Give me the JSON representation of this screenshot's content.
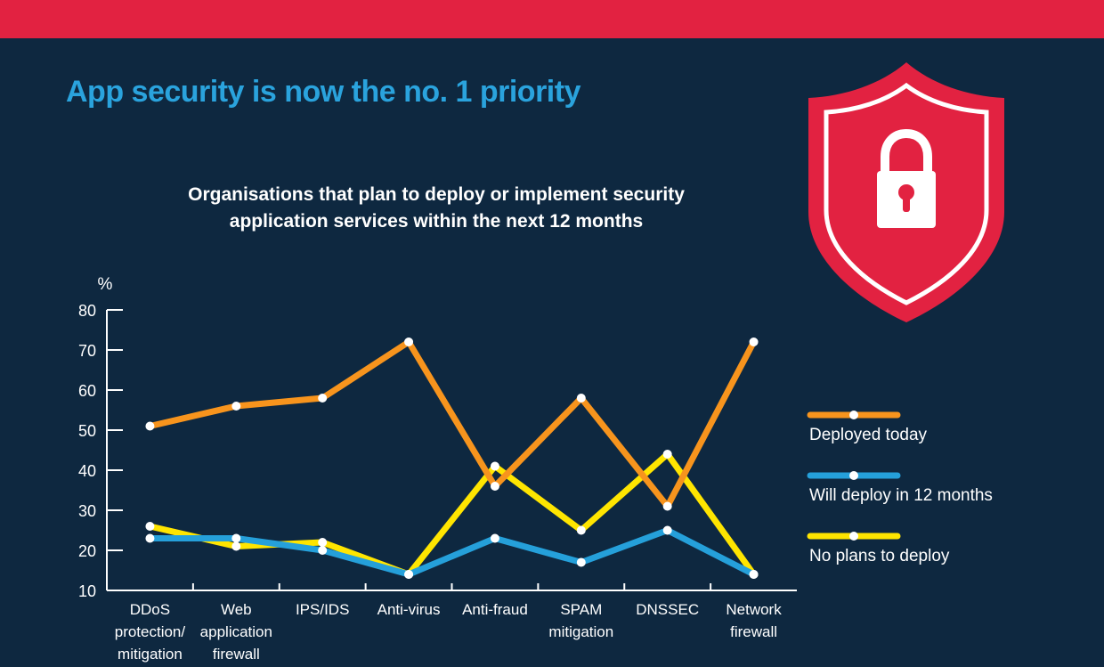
{
  "header": {
    "title": "App security is now the no. 1 priority"
  },
  "colors": {
    "banner": "#e22241",
    "background": "#0e2840",
    "title": "#2aa3dd",
    "deployed": "#f7941d",
    "will_deploy": "#25a0da",
    "no_plans": "#ffe500",
    "shield": "#e22241"
  },
  "icons": {
    "shield": "shield-lock-icon"
  },
  "chart_data": {
    "type": "line",
    "title_lines": [
      "Organisations that plan to deploy or implement security",
      "application services within the next 12 months"
    ],
    "ylabel": "%",
    "ylim": [
      10,
      80
    ],
    "yticks": [
      10,
      20,
      30,
      40,
      50,
      60,
      70,
      80
    ],
    "categories": [
      [
        "DDoS",
        "protection/",
        "mitigation"
      ],
      [
        "Web",
        "application",
        "firewall"
      ],
      [
        "IPS/IDS"
      ],
      [
        "Anti-virus"
      ],
      [
        "Anti-fraud"
      ],
      [
        "SPAM",
        "mitigation"
      ],
      [
        "DNSSEC"
      ],
      [
        "Network",
        "firewall"
      ]
    ],
    "series": [
      {
        "name": "Deployed today",
        "color": "#f7941d",
        "values": [
          51,
          56,
          58,
          72,
          36,
          58,
          31,
          72
        ]
      },
      {
        "name": "Will deploy in 12 months",
        "color": "#25a0da",
        "values": [
          23,
          23,
          20,
          14,
          23,
          17,
          25,
          14
        ]
      },
      {
        "name": "No plans to deploy",
        "color": "#ffe500",
        "values": [
          26,
          21,
          22,
          14,
          41,
          25,
          44,
          14
        ]
      }
    ],
    "legend_position": "right",
    "grid": false
  }
}
